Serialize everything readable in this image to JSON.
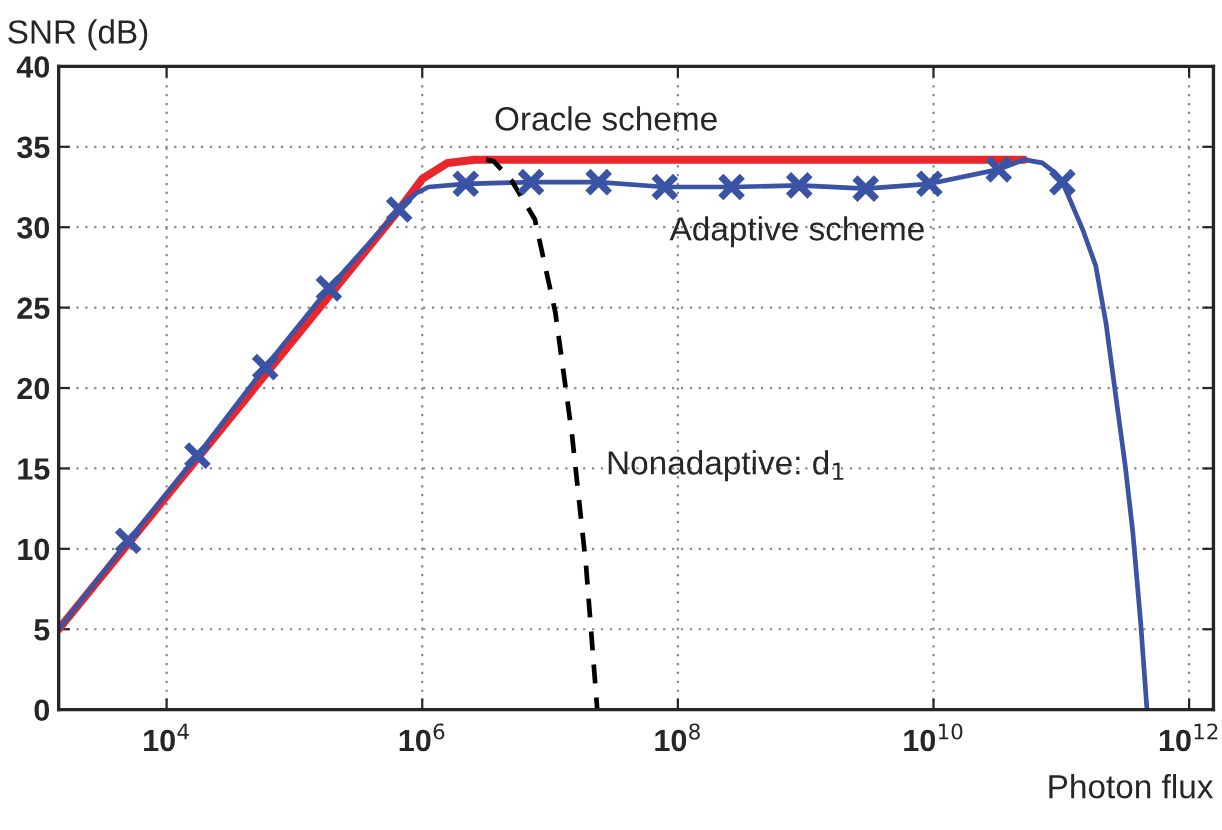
{
  "chart_data": {
    "type": "line",
    "xlabel": "Photon flux",
    "ylabel": "SNR (dB)",
    "log": "x",
    "xlim": [
      1430.0,
      1550000000000.0
    ],
    "ylim": [
      0,
      40
    ],
    "xticks": [
      {
        "value": 10000.0,
        "label": "10$^{4}$"
      },
      {
        "value": 1000000.0,
        "label": "10$^{6}$"
      },
      {
        "value": 100000000.0,
        "label": "10$^{8}$"
      },
      {
        "value": 10000000000.0,
        "label": "10$^{10}$"
      },
      {
        "value": 1000000000000.0,
        "label": "10$^{12}$"
      }
    ],
    "yticks": [
      0,
      5,
      10,
      15,
      20,
      25,
      30,
      35,
      40
    ],
    "grid": true,
    "series": [
      {
        "color": "#e8262b",
        "line_style": "solid",
        "x": [
          1430.0,
          660000.0,
          1000000.0,
          1580000.0,
          2570000.0,
          51000000000.0
        ],
        "values": [
          5,
          31.1,
          33.0,
          34.0,
          34.2,
          34.2
        ]
      },
      {
        "color": "#3a53a4",
        "line_style": "solid",
        "x": [
          1430.0,
          5000.0,
          17400.0,
          59000.0,
          186000.0,
          660000.0,
          890000.0,
          1120000.0,
          2190000.0,
          7100000.0,
          24000000.0,
          79000000.0,
          263000000.0,
          890000000.0,
          2950000000.0,
          9300000000.0,
          32400000000.0,
          51000000000.0,
          71000000000.0,
          89000000000.0,
          102000000000.0,
          117000000000.0,
          148000000000.0,
          186000000000.0,
          224000000000.0,
          269000000000.0,
          316000000000.0,
          363000000000.0,
          417000000000.0,
          468000000000.0
        ],
        "values": [
          5,
          10.5,
          15.8,
          21.3,
          26.2,
          31.1,
          32.1,
          32.5,
          32.7,
          32.8,
          32.8,
          32.5,
          32.5,
          32.6,
          32.4,
          32.7,
          33.6,
          34.2,
          34.0,
          33.4,
          32.8,
          31.7,
          29.8,
          27.6,
          24.0,
          19.3,
          15.2,
          11.0,
          5.5,
          0
        ]
      },
      {
        "type": "scatter",
        "color": "#3a53a4",
        "marker": "cross",
        "x": [
          5000.0,
          17400.0,
          59000.0,
          186000.0,
          660000.0,
          2190000.0,
          7100000.0,
          24000000.0,
          79000000.0,
          263000000.0,
          890000000.0,
          2950000000.0,
          9300000000.0,
          32400000000.0,
          102000000000.0
        ],
        "values": [
          10.5,
          15.8,
          21.3,
          26.2,
          31.1,
          32.7,
          32.8,
          32.8,
          32.5,
          32.5,
          32.6,
          32.4,
          32.7,
          33.6,
          32.8
        ]
      },
      {
        "color": "#000000",
        "line_style": "dashed",
        "x": [
          3160000.0,
          3630000.0,
          5000000.0,
          7600000.0,
          11000000.0,
          14800000.0,
          19100000.0,
          23400000.0
        ],
        "values": [
          34.2,
          34.1,
          32.9,
          30.5,
          24.7,
          17.2,
          9.0,
          0
        ]
      }
    ],
    "annotations": [
      "Oracle scheme",
      "Adaptive scheme",
      "Nonadaptive: d$_{1}$"
    ]
  }
}
